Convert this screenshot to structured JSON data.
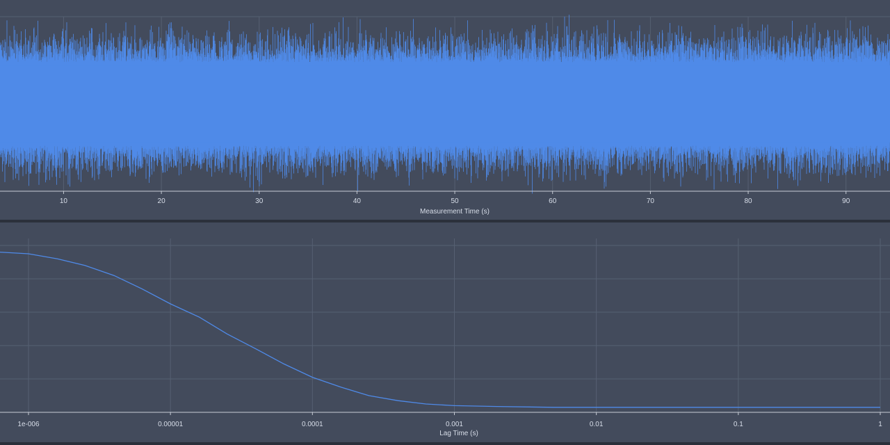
{
  "chart_data": [
    {
      "type": "line",
      "name": "trace",
      "xlabel": "Measurement Time (s)",
      "x_ticks": [
        10,
        20,
        30,
        40,
        50,
        60,
        70,
        80,
        90
      ],
      "xlim": [
        3.5,
        94.5
      ],
      "ylim": [
        -1.0,
        1.0
      ],
      "noise": {
        "center": 0.0,
        "band_amplitude": 0.48,
        "peak_amplitude": 1.05
      },
      "grid": true,
      "line_color": "#4f8ae8"
    },
    {
      "type": "line",
      "name": "correlation",
      "xlabel": "Lag Time (s)",
      "x_scale": "log",
      "x_ticks": [
        1e-06,
        1e-05,
        0.0001,
        0.001,
        0.01,
        0.1,
        1
      ],
      "x_tick_labels": [
        "1e-006",
        "0.00001",
        "0.0001",
        "0.001",
        "0.01",
        "0.1",
        "1"
      ],
      "xlim": [
        6.3e-07,
        1.0
      ],
      "ylim": [
        0.0,
        1.0
      ],
      "grid": true,
      "line_color": "#4f8ae8",
      "x": [
        6.3e-07,
        1e-06,
        1.6e-06,
        2.5e-06,
        4e-06,
        6.3e-06,
        1e-05,
        1.6e-05,
        2.5e-05,
        4e-05,
        6.3e-05,
        0.0001,
        0.00016,
        0.00025,
        0.0004,
        0.00063,
        0.001,
        0.002,
        0.005,
        0.01,
        0.03,
        0.1,
        0.3,
        1.0
      ],
      "y": [
        0.96,
        0.95,
        0.92,
        0.88,
        0.82,
        0.74,
        0.65,
        0.57,
        0.47,
        0.38,
        0.29,
        0.21,
        0.15,
        0.1,
        0.07,
        0.05,
        0.04,
        0.035,
        0.03,
        0.03,
        0.03,
        0.03,
        0.03,
        0.03
      ]
    }
  ]
}
